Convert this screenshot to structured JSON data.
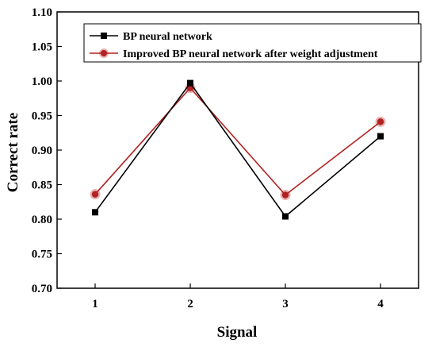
{
  "chart_data": {
    "type": "line",
    "x": [
      1,
      2,
      3,
      4
    ],
    "xticks": [
      "1",
      "2",
      "3",
      "4"
    ],
    "xlim": [
      0.6,
      4.4
    ],
    "ylim": [
      0.7,
      1.1
    ],
    "yticks": [
      "0.70",
      "0.75",
      "0.80",
      "0.85",
      "0.90",
      "0.95",
      "1.00",
      "1.05",
      "1.10"
    ],
    "xlabel": "Signal",
    "ylabel": "Correct rate",
    "grid": false,
    "legend_position": "top-left",
    "series": [
      {
        "name": "BP neural network",
        "values": [
          0.81,
          0.997,
          0.804,
          0.92
        ],
        "color": "#000000",
        "marker": "square"
      },
      {
        "name": "Improved BP neural network after weight adjustment",
        "values": [
          0.836,
          0.99,
          0.835,
          0.941
        ],
        "color": "#b22222",
        "marker": "circle"
      }
    ]
  }
}
